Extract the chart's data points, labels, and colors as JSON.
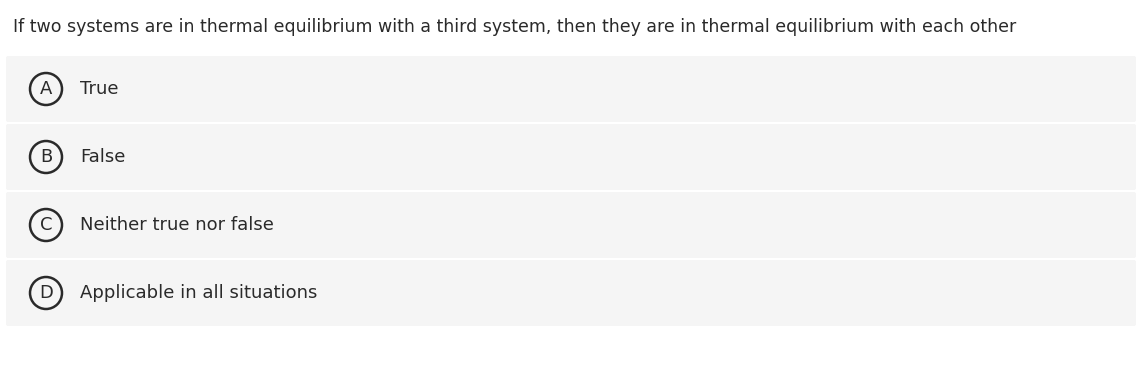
{
  "question": "If two systems are in thermal equilibrium with a third system, then they are in thermal equilibrium with each other",
  "options": [
    {
      "label": "A",
      "text": "True"
    },
    {
      "label": "B",
      "text": "False"
    },
    {
      "label": "C",
      "text": "Neither true nor false"
    },
    {
      "label": "D",
      "text": "Applicable in all situations"
    }
  ],
  "bg_color": "#ffffff",
  "option_bg_color": "#f5f5f5",
  "text_color": "#2a2a2a",
  "circle_edge_color": "#2a2a2a",
  "question_fontsize": 12.5,
  "option_fontsize": 13,
  "label_fontsize": 13,
  "fig_width": 11.42,
  "fig_height": 3.82,
  "dpi": 100
}
